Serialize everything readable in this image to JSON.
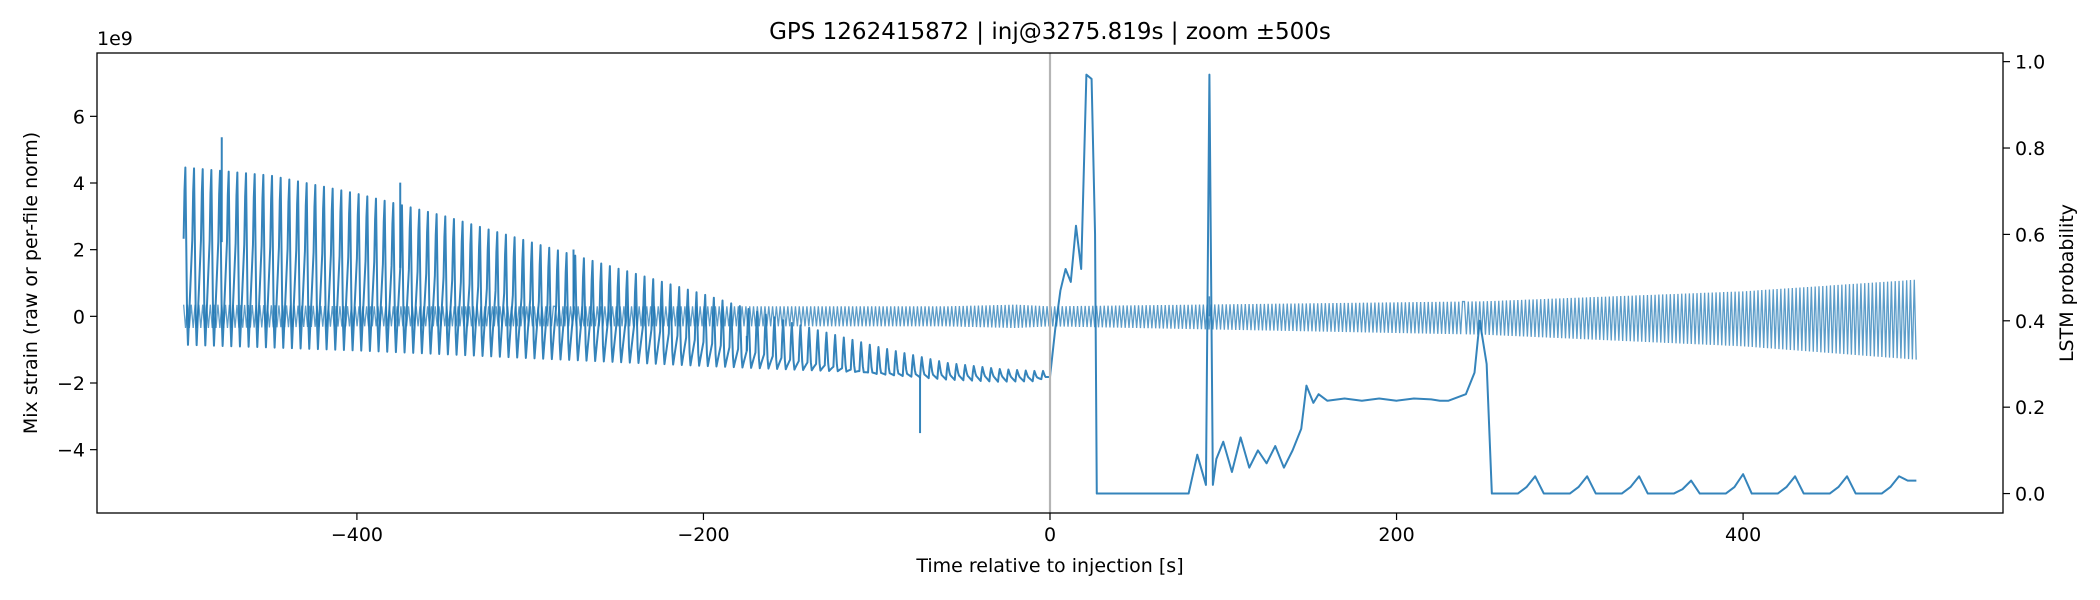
{
  "chart_data": {
    "type": "line",
    "title": "GPS 1262415872 | inj@3275.819s | zoom ±500s",
    "xlabel": "Time relative to injection [s]",
    "ylabel_left": "Mix strain (raw or per-file norm)",
    "ylabel_right": "LSTM probability",
    "offset_label": "1e9",
    "xlim": [
      -550,
      550
    ],
    "ylim_left": [
      -5.9,
      7.9
    ],
    "ylim_right": [
      -0.045,
      1.02
    ],
    "x_ticks": [
      -400,
      -200,
      0,
      200,
      400
    ],
    "x_tick_labels": [
      "−400",
      "−200",
      "0",
      "200",
      "400"
    ],
    "y_left_ticks": [
      -4,
      -2,
      0,
      2,
      4,
      6
    ],
    "y_left_tick_labels": [
      "−4",
      "−2",
      "0",
      "2",
      "4",
      "6"
    ],
    "y_right_ticks": [
      0.0,
      0.2,
      0.4,
      0.6,
      0.8,
      1.0
    ],
    "y_right_tick_labels": [
      "0.0",
      "0.2",
      "0.4",
      "0.6",
      "0.8",
      "1.0"
    ],
    "injection_marker_x": 0,
    "series": [
      {
        "name": "Mix strain",
        "axis": "left",
        "color": "#1f77b4",
        "x": [
          -500,
          -480,
          -400,
          -300,
          -200,
          -100,
          -60,
          -20,
          0,
          250,
          400,
          500
        ],
        "envelope_upper": [
          0.35,
          0.35,
          0.3,
          0.3,
          0.3,
          0.3,
          0.3,
          0.35,
          0.3,
          0.45,
          0.75,
          1.1
        ],
        "envelope_lower": [
          -0.35,
          -0.35,
          -0.3,
          -0.3,
          -0.3,
          -0.3,
          -0.3,
          -0.35,
          -0.3,
          -0.55,
          -0.9,
          -1.3
        ],
        "spikes": [
          {
            "x": 92,
            "y": 0.6
          },
          {
            "x": 0,
            "y": 0.4
          }
        ]
      },
      {
        "name": "LSTM probability",
        "axis": "right",
        "color": "#1f77b4",
        "baseline_x": [
          -500,
          -450,
          -400,
          -350,
          -300,
          -250,
          -200,
          -150,
          -100,
          -60,
          -30,
          -10,
          0
        ],
        "baseline_y": [
          0.59,
          0.572,
          0.545,
          0.5,
          0.449,
          0.4,
          0.351,
          0.31,
          0.277,
          0.264,
          0.259,
          0.26,
          0.27
        ],
        "upper_x": [
          -500,
          -450,
          -400,
          -350,
          -300,
          -250,
          -200,
          -150,
          -100,
          -60,
          -30,
          -10
        ],
        "upper_y": [
          0.79,
          0.77,
          0.725,
          0.67,
          0.605,
          0.54,
          0.475,
          0.405,
          0.345,
          0.305,
          0.29,
          0.285
        ],
        "lower_x": [
          -500,
          -450,
          -400,
          -350,
          -300,
          -250,
          -200,
          -150,
          -100,
          -60,
          -30,
          -10
        ],
        "lower_y": [
          0.32,
          0.315,
          0.31,
          0.305,
          0.3,
          0.295,
          0.29,
          0.285,
          0.28,
          0.275,
          0.272,
          0.27
        ],
        "oscillation_period_s": 5,
        "spikes": [
          {
            "x": -478,
            "y": 0.825
          },
          {
            "x": -375,
            "y": 0.72
          },
          {
            "x": -275,
            "y": 0.565
          },
          {
            "x": -175,
            "y": 0.365
          },
          {
            "x": -75,
            "y": 0.14
          }
        ],
        "post_x": [
          0,
          3,
          6,
          9,
          12,
          15,
          18,
          21,
          24,
          26,
          27,
          80,
          85,
          90,
          92,
          94,
          96,
          100,
          105,
          110,
          115,
          120,
          125,
          130,
          135,
          140,
          145,
          148,
          152,
          155,
          160,
          170,
          180,
          190,
          200,
          210,
          220,
          225,
          230,
          240,
          245,
          248,
          252,
          255,
          258,
          260,
          270,
          275,
          280,
          285,
          300,
          305,
          310,
          315,
          330,
          335,
          340,
          345,
          360,
          365,
          370,
          375,
          390,
          395,
          400,
          405,
          420,
          425,
          430,
          435,
          450,
          455,
          460,
          465,
          480,
          485,
          490,
          495,
          500
        ],
        "post_y": [
          0.27,
          0.38,
          0.47,
          0.52,
          0.49,
          0.62,
          0.52,
          0.97,
          0.96,
          0.6,
          0.0,
          0.0,
          0.09,
          0.02,
          0.97,
          0.02,
          0.08,
          0.12,
          0.05,
          0.13,
          0.06,
          0.1,
          0.07,
          0.11,
          0.06,
          0.1,
          0.15,
          0.25,
          0.21,
          0.23,
          0.215,
          0.22,
          0.215,
          0.22,
          0.215,
          0.22,
          0.218,
          0.215,
          0.215,
          0.23,
          0.28,
          0.4,
          0.3,
          0.0,
          0.0,
          0.0,
          0.0,
          0.015,
          0.04,
          0.0,
          0.0,
          0.015,
          0.04,
          0.0,
          0.0,
          0.015,
          0.04,
          0.0,
          0.0,
          0.01,
          0.03,
          0.0,
          0.0,
          0.015,
          0.045,
          0.0,
          0.0,
          0.015,
          0.04,
          0.0,
          0.0,
          0.015,
          0.04,
          0.0,
          0.0,
          0.015,
          0.04,
          0.03,
          0.03
        ]
      }
    ]
  }
}
